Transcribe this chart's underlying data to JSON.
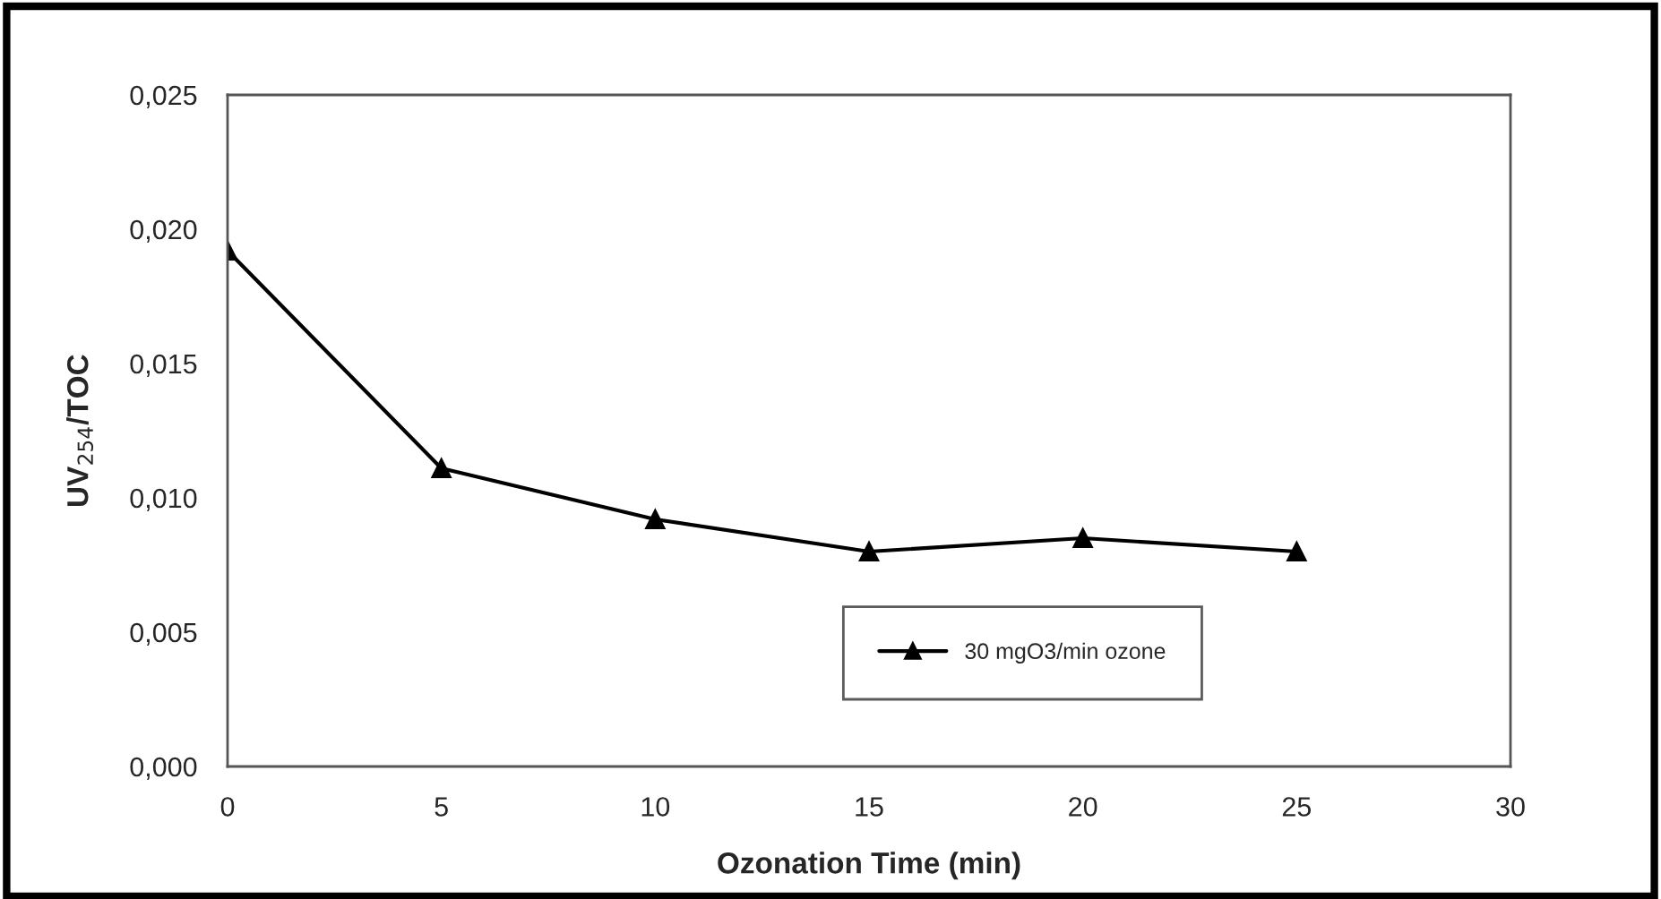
{
  "chart_data": {
    "type": "line",
    "xlabel": "Ozonation Time (min)",
    "ylabel": "UV$_{254}$/TOC",
    "x": [
      0,
      5,
      10,
      15,
      20,
      25
    ],
    "series": [
      {
        "name": "30 mgO3/min ozone",
        "color": "#000000",
        "values": [
          0.0192,
          0.0111,
          0.0092,
          0.008,
          0.0085,
          0.008
        ]
      }
    ],
    "xlim": [
      0,
      30
    ],
    "xticks": [
      0,
      5,
      10,
      15,
      20,
      25,
      30
    ],
    "ylim": [
      0,
      0.025
    ],
    "yticks": [
      {
        "value": 0,
        "label": "0,000"
      },
      {
        "value": 0.005,
        "label": "0,005"
      },
      {
        "value": 0.01,
        "label": "0,010"
      },
      {
        "value": 0.015,
        "label": "0,015"
      },
      {
        "value": 0.02,
        "label": "0,020"
      },
      {
        "value": 0.025,
        "label": "0,025"
      }
    ],
    "marker": "triangle",
    "line_style": "solid",
    "grid": false,
    "legend": "bottom right"
  }
}
